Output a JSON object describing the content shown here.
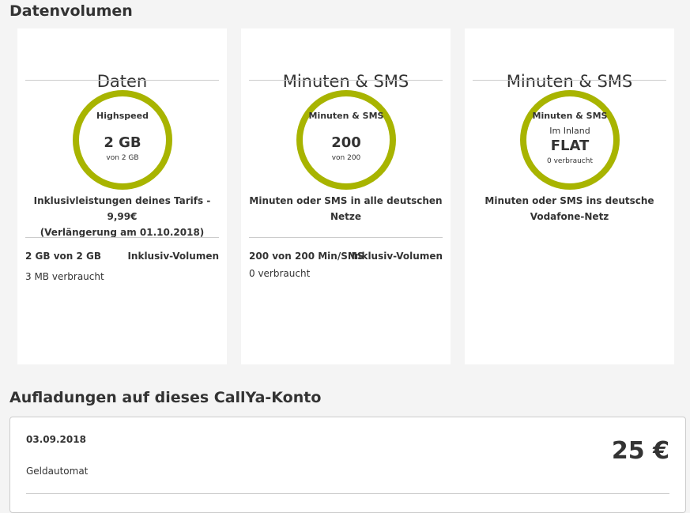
{
  "header": {
    "title": "Datenvolumen"
  },
  "cards": [
    {
      "title": "Daten",
      "ring": {
        "label": "Highspeed",
        "sub": "",
        "value": "2 GB",
        "note": "von  2 GB"
      },
      "desc": [
        "Inklusivleistungen deines Tarifs - 9,99€",
        "(Verlängerung am 01.10.2018)"
      ],
      "amount": "2 GB von 2 GB",
      "type": "Inklusiv-Volumen",
      "used": "3 MB verbraucht"
    },
    {
      "title": "Minuten & SMS",
      "ring": {
        "label": "Minuten & SMS",
        "sub": "",
        "value": "200",
        "note": "von  200"
      },
      "desc": [
        "Minuten oder SMS in alle deutschen",
        "Netze"
      ],
      "amount": "200 von 200 Min/SMS",
      "type": "Inklusiv-Volumen",
      "used": "0 verbraucht"
    },
    {
      "title": "Minuten & SMS",
      "ring": {
        "label": "Minuten & SMS",
        "sub": "Im Inland",
        "value": "FLAT",
        "note": "0  verbraucht"
      },
      "desc": [
        "Minuten oder SMS ins deutsche",
        "Vodafone-Netz"
      ]
    }
  ],
  "topups": {
    "title": "Aufladungen auf dieses CallYa-Konto",
    "items": [
      {
        "date": "03.09.2018",
        "method": "Geldautomat",
        "amount": "25 €"
      }
    ]
  },
  "colors": {
    "ring": "#a8b400"
  }
}
